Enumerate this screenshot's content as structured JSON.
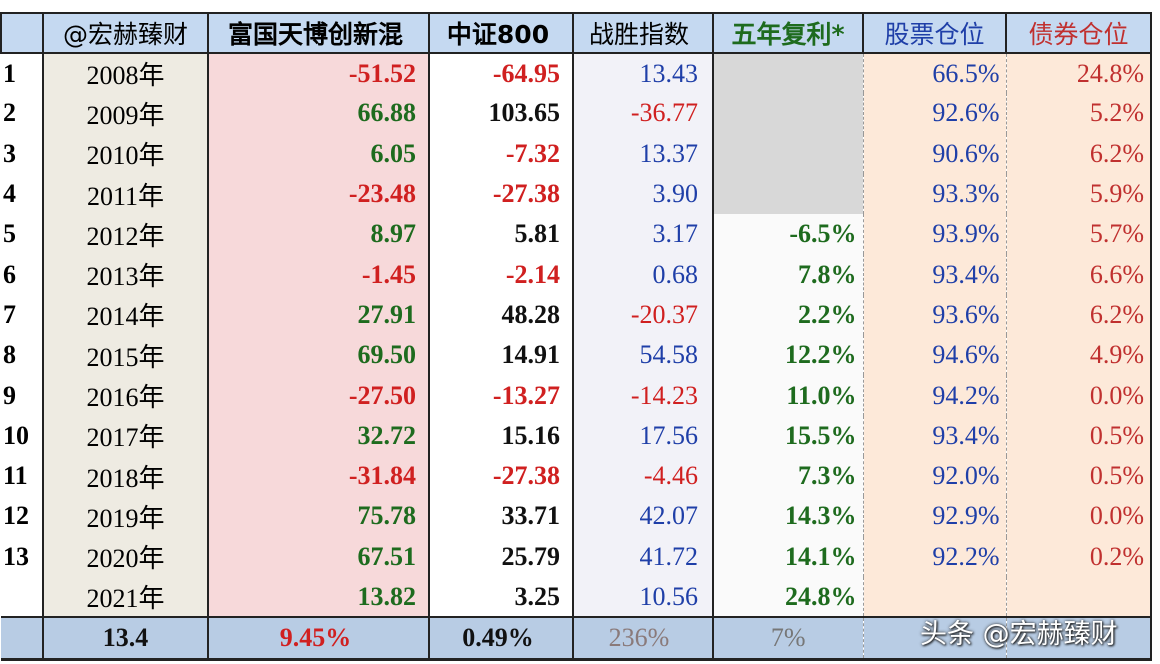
{
  "header": [
    "@宏赫臻财",
    "富国天博创新混",
    "中证800",
    "战胜指数",
    "五年复利*",
    "股票仓位",
    "债券仓位"
  ],
  "rows": [
    [
      "1",
      "2008年",
      "-51.52",
      "-64.95",
      "13.43",
      null,
      "66.5%",
      "24.8%"
    ],
    [
      "2",
      "2009年",
      "66.88",
      "103.65",
      "-36.77",
      null,
      "92.6%",
      "5.2%"
    ],
    [
      "3",
      "2010年",
      "6.05",
      "-7.32",
      "13.37",
      null,
      "90.6%",
      "6.2%"
    ],
    [
      "4",
      "2011年",
      "-23.48",
      "-27.38",
      "3.90",
      null,
      "93.3%",
      "5.9%"
    ],
    [
      "5",
      "2012年",
      "8.97",
      "5.81",
      "3.17",
      "-6.5%",
      "93.9%",
      "5.7%"
    ],
    [
      "6",
      "2013年",
      "-1.45",
      "-2.14",
      "0.68",
      "7.8%",
      "93.4%",
      "6.6%"
    ],
    [
      "7",
      "2014年",
      "27.91",
      "48.28",
      "-20.37",
      "2.2%",
      "93.6%",
      "6.2%"
    ],
    [
      "8",
      "2015年",
      "69.50",
      "14.91",
      "54.58",
      "12.2%",
      "94.6%",
      "4.9%"
    ],
    [
      "9",
      "2016年",
      "-27.50",
      "-13.27",
      "-14.23",
      "11.0%",
      "94.2%",
      "0.0%"
    ],
    [
      "10",
      "2017年",
      "32.72",
      "15.16",
      "17.56",
      "15.5%",
      "93.4%",
      "0.5%"
    ],
    [
      "11",
      "2018年",
      "-31.84",
      "-27.38",
      "-4.46",
      "7.3%",
      "92.0%",
      "0.5%"
    ],
    [
      "12",
      "2019年",
      "75.78",
      "33.71",
      "42.07",
      "14.3%",
      "92.9%",
      "0.0%"
    ],
    [
      "13",
      "2020年",
      "67.51",
      "25.79",
      "41.72",
      "14.1%",
      "92.2%",
      "0.2%"
    ],
    [
      null,
      "2021年",
      "13.82",
      "3.25",
      "10.56",
      "24.8%",
      null,
      null
    ]
  ],
  "footer": [
    "13.4",
    "9.45%",
    "0.49%",
    "236%",
    "7%"
  ],
  "watermark": "头条 @宏赫臻财"
}
